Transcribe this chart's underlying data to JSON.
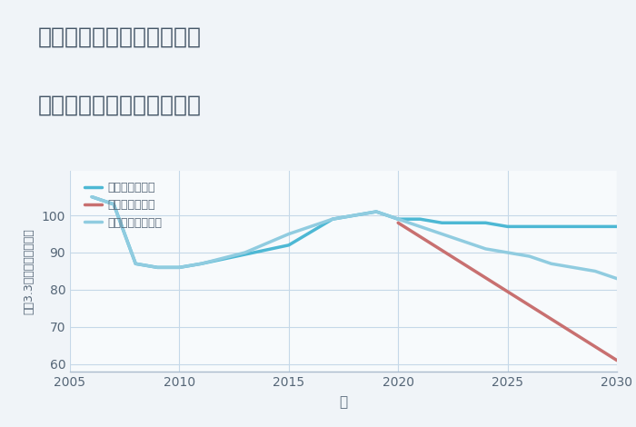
{
  "title_line1": "奈良県磯城郡三宅町小柳の",
  "title_line2": "中古マンションの価格推移",
  "xlabel": "年",
  "ylabel": "坪（3.3㎡）単価（万円）",
  "xlim": [
    2005,
    2030
  ],
  "ylim": [
    58,
    112
  ],
  "xticks": [
    2005,
    2010,
    2015,
    2020,
    2025,
    2030
  ],
  "yticks": [
    60,
    70,
    80,
    90,
    100
  ],
  "background_color": "#f0f4f8",
  "plot_bg_color": "#f7fafc",
  "grid_color": "#c5d8e8",
  "good_scenario": {
    "label": "グッドシナリオ",
    "color": "#4db8d4",
    "linewidth": 2.5,
    "x": [
      2006,
      2007,
      2008,
      2009,
      2010,
      2011,
      2015,
      2017,
      2018,
      2019,
      2020,
      2021,
      2022,
      2023,
      2024,
      2025,
      2026,
      2027,
      2028,
      2029,
      2030
    ],
    "y": [
      105,
      103,
      87,
      86,
      86,
      87,
      92,
      99,
      100,
      101,
      99,
      99,
      98,
      98,
      98,
      97,
      97,
      97,
      97,
      97,
      97
    ]
  },
  "bad_scenario": {
    "label": "バッドシナリオ",
    "color": "#c87070",
    "linewidth": 2.5,
    "x": [
      2020,
      2030
    ],
    "y": [
      98,
      61
    ]
  },
  "normal_scenario": {
    "label": "ノーマルシナリオ",
    "color": "#90cce0",
    "linewidth": 2.5,
    "x": [
      2006,
      2007,
      2008,
      2009,
      2010,
      2011,
      2013,
      2015,
      2017,
      2018,
      2019,
      2020,
      2021,
      2022,
      2023,
      2024,
      2025,
      2026,
      2027,
      2028,
      2029,
      2030
    ],
    "y": [
      105,
      103,
      87,
      86,
      86,
      87,
      90,
      95,
      99,
      100,
      101,
      99,
      97,
      95,
      93,
      91,
      90,
      89,
      87,
      86,
      85,
      83
    ]
  },
  "title_fontsize": 18,
  "tick_fontsize": 10,
  "legend_fontsize": 9,
  "ylabel_fontsize": 9,
  "xlabel_fontsize": 11
}
